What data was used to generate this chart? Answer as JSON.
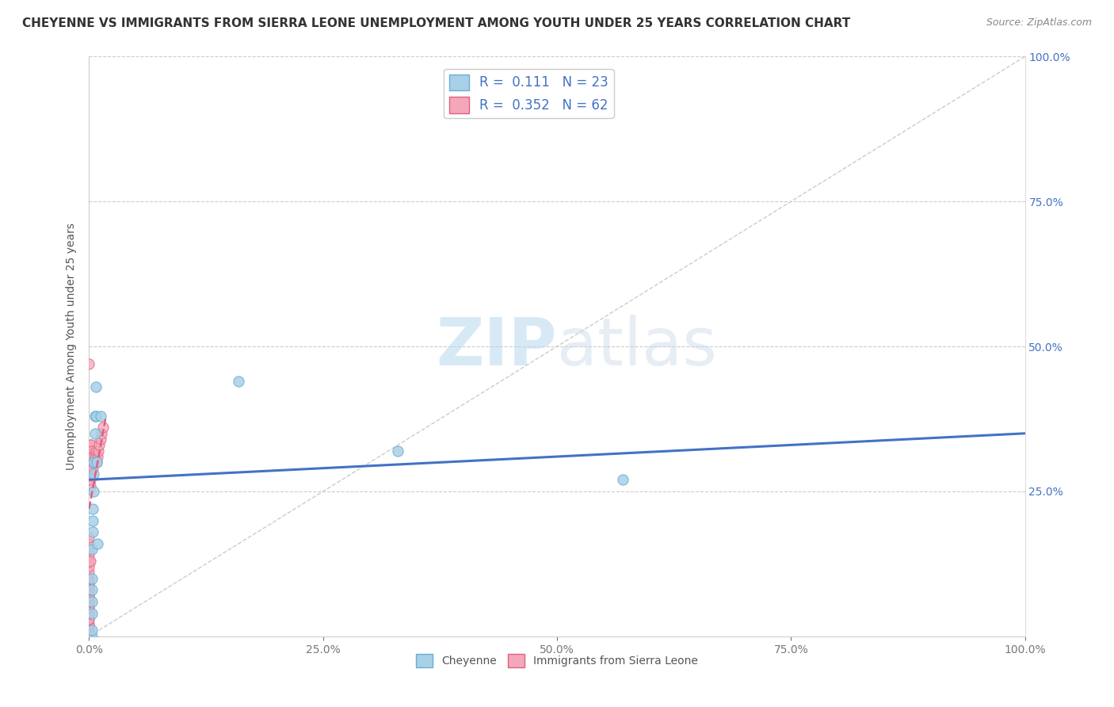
{
  "title": "CHEYENNE VS IMMIGRANTS FROM SIERRA LEONE UNEMPLOYMENT AMONG YOUTH UNDER 25 YEARS CORRELATION CHART",
  "source": "Source: ZipAtlas.com",
  "ylabel": "Unemployment Among Youth under 25 years",
  "xlim": [
    0,
    1
  ],
  "ylim": [
    0,
    1
  ],
  "xticks": [
    0,
    0.25,
    0.5,
    0.75,
    1.0
  ],
  "yticks": [
    0.25,
    0.5,
    0.75,
    1.0
  ],
  "xtick_labels": [
    "0.0%",
    "25.0%",
    "50.0%",
    "75.0%",
    "100.0%"
  ],
  "ytick_labels_right": [
    "25.0%",
    "50.0%",
    "75.0%",
    "100.0%"
  ],
  "cheyenne_color": "#a8d0e6",
  "cheyenne_edge": "#6aaed6",
  "sierra_leone_color": "#f4a7b9",
  "sierra_leone_edge": "#e06080",
  "R_cheyenne": 0.111,
  "N_cheyenne": 23,
  "R_sierra_leone": 0.352,
  "N_sierra_leone": 62,
  "regression_line_cheyenne_color": "#4472c4",
  "regression_line_sierra_leone_color": "#e06080",
  "diagonal_color": "#cccccc",
  "background_color": "#ffffff",
  "watermark_zip": "ZIP",
  "watermark_atlas": "atlas",
  "cheyenne_x": [
    0.003,
    0.003,
    0.003,
    0.003,
    0.003,
    0.003,
    0.003,
    0.004,
    0.004,
    0.004,
    0.005,
    0.005,
    0.005,
    0.006,
    0.006,
    0.007,
    0.007,
    0.008,
    0.009,
    0.012,
    0.16,
    0.33,
    0.57
  ],
  "cheyenne_y": [
    0.0,
    0.01,
    0.04,
    0.06,
    0.08,
    0.1,
    0.15,
    0.18,
    0.2,
    0.22,
    0.25,
    0.28,
    0.3,
    0.35,
    0.38,
    0.38,
    0.43,
    0.3,
    0.16,
    0.38,
    0.44,
    0.32,
    0.27
  ],
  "sierra_leone_x": [
    0.0,
    0.0,
    0.0,
    0.0,
    0.0,
    0.0,
    0.0,
    0.0,
    0.0,
    0.0,
    0.0,
    0.0,
    0.0,
    0.0,
    0.0,
    0.0,
    0.0,
    0.0,
    0.0,
    0.0,
    0.0,
    0.0,
    0.0,
    0.0,
    0.0,
    0.0,
    0.0,
    0.0,
    0.0,
    0.0,
    0.0,
    0.0,
    0.0,
    0.001,
    0.001,
    0.001,
    0.001,
    0.001,
    0.001,
    0.001,
    0.001,
    0.001,
    0.002,
    0.002,
    0.002,
    0.002,
    0.002,
    0.003,
    0.003,
    0.003,
    0.004,
    0.004,
    0.005,
    0.006,
    0.007,
    0.008,
    0.009,
    0.01,
    0.011,
    0.012,
    0.013,
    0.015
  ],
  "sierra_leone_y": [
    0.0,
    0.0,
    0.0,
    0.0,
    0.0,
    0.01,
    0.01,
    0.02,
    0.02,
    0.03,
    0.03,
    0.04,
    0.04,
    0.05,
    0.05,
    0.06,
    0.06,
    0.07,
    0.07,
    0.08,
    0.08,
    0.09,
    0.09,
    0.1,
    0.1,
    0.11,
    0.12,
    0.13,
    0.14,
    0.15,
    0.16,
    0.17,
    0.47,
    0.13,
    0.26,
    0.27,
    0.28,
    0.29,
    0.3,
    0.31,
    0.32,
    0.33,
    0.29,
    0.3,
    0.31,
    0.32,
    0.33,
    0.3,
    0.31,
    0.32,
    0.29,
    0.31,
    0.3,
    0.31,
    0.32,
    0.3,
    0.31,
    0.32,
    0.33,
    0.34,
    0.35,
    0.36
  ],
  "blue_line_x0": 0.0,
  "blue_line_y0": 0.27,
  "blue_line_x1": 1.0,
  "blue_line_y1": 0.35,
  "pink_line_x0": 0.0,
  "pink_line_y0": 0.27,
  "pink_line_x1": 0.015,
  "pink_line_y1": 0.35,
  "title_fontsize": 11,
  "label_fontsize": 10,
  "tick_fontsize": 10,
  "legend_fontsize": 12
}
